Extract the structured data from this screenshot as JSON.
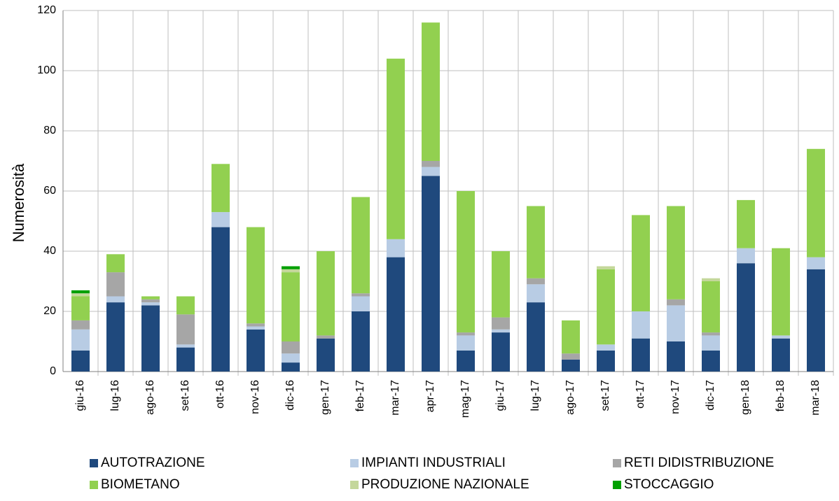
{
  "chart_data": {
    "type": "stacked_bar",
    "y_label": "Numerosità",
    "categories": [
      "giu-16",
      "lug-16",
      "ago-16",
      "set-16",
      "ott-16",
      "nov-16",
      "dic-16",
      "gen-17",
      "feb-17",
      "mar-17",
      "apr-17",
      "mag-17",
      "giu-17",
      "lug-17",
      "ago-17",
      "set-17",
      "ott-17",
      "nov-17",
      "dic-17",
      "gen-18",
      "feb-18",
      "mar-18"
    ],
    "series": [
      {
        "name": "AUTOTRAZIONE",
        "color": "#1f497d",
        "values": [
          7,
          23,
          22,
          8,
          48,
          14,
          3,
          11,
          20,
          38,
          65,
          7,
          13,
          23,
          4,
          7,
          11,
          10,
          7,
          36,
          11,
          34
        ]
      },
      {
        "name": "IMPIANTI INDUSTRIALI",
        "color": "#b8cce4",
        "values": [
          7,
          2,
          1,
          1,
          5,
          1,
          3,
          0,
          5,
          6,
          3,
          5,
          1,
          6,
          0,
          2,
          9,
          12,
          5,
          5,
          1,
          4
        ]
      },
      {
        "name": "RETI DIDISTRIBUZIONE",
        "color": "#a6a6a6",
        "values": [
          3,
          8,
          1,
          10,
          0,
          1,
          4,
          1,
          1,
          0,
          2,
          1,
          4,
          2,
          2,
          0,
          0,
          2,
          1,
          0,
          0,
          0
        ]
      },
      {
        "name": "BIOMETANO",
        "color": "#92d050",
        "values": [
          8,
          6,
          1,
          6,
          16,
          32,
          23,
          28,
          32,
          60,
          46,
          47,
          22,
          24,
          11,
          25,
          32,
          31,
          17,
          16,
          29,
          36
        ]
      },
      {
        "name": "PRODUZIONE NAZIONALE",
        "color": "#c4d79b",
        "values": [
          1,
          0,
          0,
          0,
          0,
          0,
          1,
          0,
          0,
          0,
          0,
          0,
          0,
          0,
          0,
          1,
          0,
          0,
          1,
          0,
          0,
          0
        ]
      },
      {
        "name": "STOCCAGGIO",
        "color": "#00a000",
        "values": [
          1,
          0,
          0,
          0,
          0,
          0,
          1,
          0,
          0,
          0,
          0,
          0,
          0,
          0,
          0,
          0,
          0,
          0,
          0,
          0,
          0,
          0
        ]
      }
    ],
    "ylim": [
      0,
      120
    ],
    "yticks": [
      0,
      20,
      40,
      60,
      80,
      100,
      120
    ],
    "grid": true
  }
}
